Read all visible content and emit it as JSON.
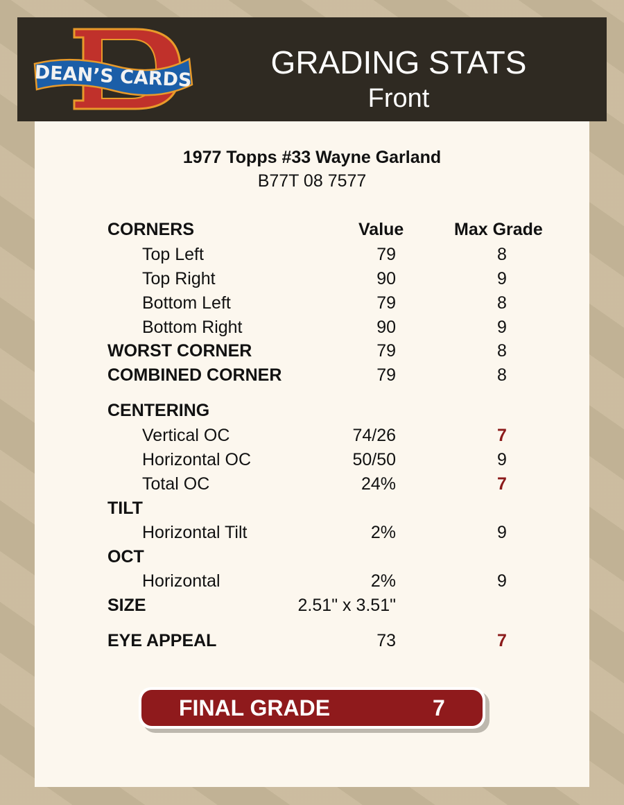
{
  "header": {
    "logo_text": "DEAN'S CARDS",
    "title": "GRADING STATS",
    "subtitle": "Front"
  },
  "card": {
    "name": "1977 Topps #33 Wayne Garland",
    "cert": "B77T 08 7577"
  },
  "columns": {
    "value": "Value",
    "max_grade": "Max Grade"
  },
  "rows": [
    {
      "label": "CORNERS",
      "type": "head",
      "value": "",
      "max": ""
    },
    {
      "label": "Top Left",
      "type": "sub",
      "value": "79",
      "max": "8"
    },
    {
      "label": "Top Right",
      "type": "sub",
      "value": "90",
      "max": "9"
    },
    {
      "label": "Bottom Left",
      "type": "sub",
      "value": "79",
      "max": "8"
    },
    {
      "label": "Bottom Right",
      "type": "sub",
      "value": "90",
      "max": "9"
    },
    {
      "label": "WORST CORNER",
      "type": "head",
      "value": "79",
      "max": "8"
    },
    {
      "label": "COMBINED CORNER",
      "type": "head",
      "value": "79",
      "max": "8"
    },
    {
      "label": "CENTERING",
      "type": "head",
      "value": "",
      "max": ""
    },
    {
      "label": "Vertical OC",
      "type": "sub",
      "value": "74/26",
      "max": "7",
      "low": true
    },
    {
      "label": "Horizontal OC",
      "type": "sub",
      "value": "50/50",
      "max": "9"
    },
    {
      "label": "Total OC",
      "type": "sub",
      "value": "24%",
      "max": "7",
      "low": true
    },
    {
      "label": "TILT",
      "type": "head",
      "value": "",
      "max": ""
    },
    {
      "label": "Horizontal Tilt",
      "type": "sub",
      "value": "2%",
      "max": "9"
    },
    {
      "label": "OCT",
      "type": "head",
      "value": "",
      "max": ""
    },
    {
      "label": "Horizontal",
      "type": "sub",
      "value": "2%",
      "max": "9"
    },
    {
      "label": "SIZE",
      "type": "head",
      "value": "2.51\" x 3.51\"",
      "max": ""
    },
    {
      "label": "EYE APPEAL",
      "type": "head",
      "value": "73",
      "max": "7",
      "low": true
    }
  ],
  "final": {
    "label": "FINAL GRADE",
    "value": "7"
  },
  "colors": {
    "header_bg": "#2f2a22",
    "panel_bg": "#fcf7ee",
    "accent_red": "#8f1a1c",
    "low_grade": "#8b1a1a"
  }
}
